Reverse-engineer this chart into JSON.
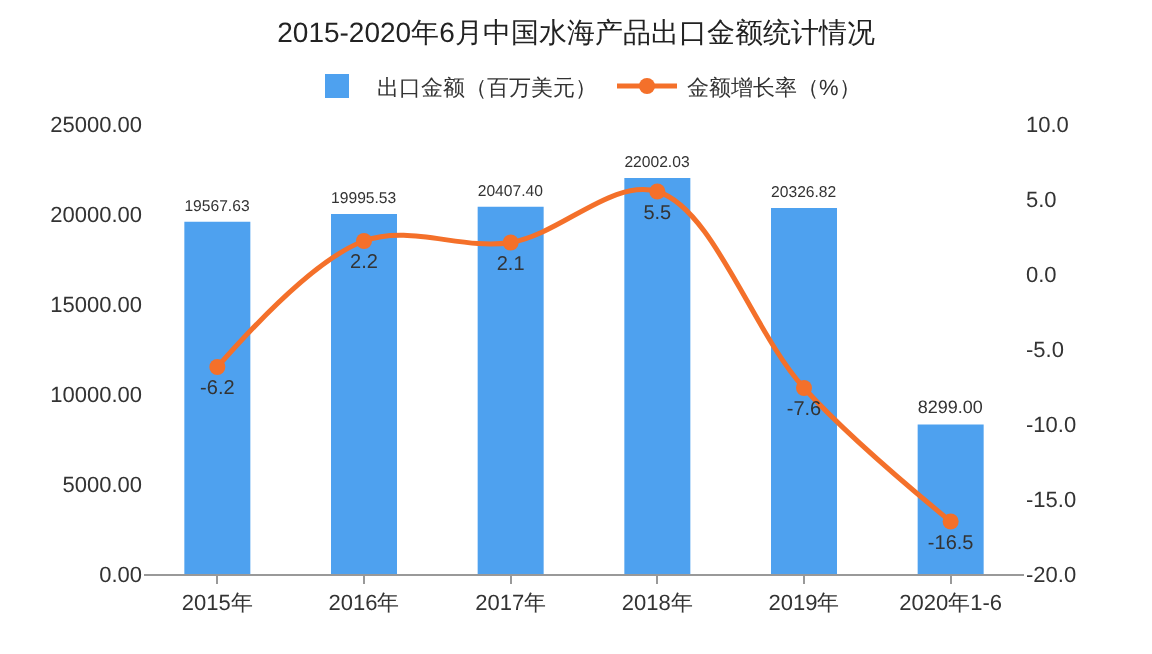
{
  "chart_data": {
    "type": "bar",
    "title": "2015-2020年6月中国水海产品出口金额统计情况",
    "categories": [
      "2015年",
      "2016年",
      "2017年",
      "2018年",
      "2019年",
      "2020年1-6"
    ],
    "series": [
      {
        "name": "出口金额（百万美元）",
        "color": "#4ea1ef",
        "values": [
          19567.63,
          19995.53,
          20407.4,
          22002.03,
          20326.82,
          8299.0
        ],
        "value_labels": [
          "19567.63",
          "19995.53",
          "20407.40",
          "22002.03",
          "20326.82",
          "8299.00"
        ]
      },
      {
        "name": "金额增长率（%）",
        "type": "line",
        "axis": "y2",
        "color": "#f4702a",
        "values": [
          -6.2,
          2.2,
          2.1,
          5.5,
          -7.6,
          -16.5
        ],
        "value_labels": [
          "-6.2",
          "2.2",
          "2.1",
          "5.5",
          "-7.6",
          "-16.5"
        ]
      }
    ],
    "ylim": [
      0,
      25000
    ],
    "yticks": [
      {
        "value": 0,
        "label": "0.00"
      },
      {
        "value": 5000,
        "label": "5000.00"
      },
      {
        "value": 10000,
        "label": "10000.00"
      },
      {
        "value": 15000,
        "label": "15000.00"
      },
      {
        "value": 20000,
        "label": "20000.00"
      },
      {
        "value": 25000,
        "label": "25000.00"
      }
    ],
    "y2lim": [
      -20,
      10
    ],
    "y2ticks": [
      {
        "value": -20,
        "label": "-20.0"
      },
      {
        "value": -15,
        "label": "-15.0"
      },
      {
        "value": -10,
        "label": "-10.0"
      },
      {
        "value": -5,
        "label": "-5.0"
      },
      {
        "value": 0,
        "label": "0.0"
      },
      {
        "value": 5,
        "label": "5.0"
      },
      {
        "value": 10,
        "label": "10.0"
      }
    ],
    "legend": "top",
    "marker": "circle",
    "grid": false
  }
}
